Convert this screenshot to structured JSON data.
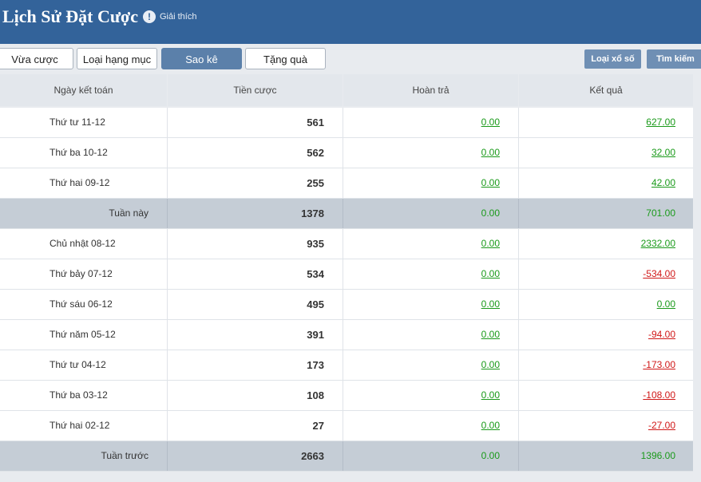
{
  "header": {
    "title": "Lịch Sử Đặt Cược",
    "help": "Giải thích"
  },
  "tabs": [
    "Vừa cược",
    "Loại hạng mục",
    "Sao kê",
    "Tặng quà"
  ],
  "active_tab": 2,
  "actions": [
    "Loại xổ số",
    "Tìm kiếm"
  ],
  "table": {
    "columns": [
      "Ngày kết toán",
      "Tiền cược",
      "Hoàn trả",
      "Kết quả"
    ],
    "rows": [
      {
        "summary": false,
        "cells": [
          "Thứ tư 11-12",
          "561",
          "0.00",
          "627.00"
        ]
      },
      {
        "summary": false,
        "cells": [
          "Thứ ba 10-12",
          "562",
          "0.00",
          "32.00"
        ]
      },
      {
        "summary": false,
        "cells": [
          "Thứ hai 09-12",
          "255",
          "0.00",
          "42.00"
        ]
      },
      {
        "summary": true,
        "cells": [
          "Tuần này",
          "1378",
          "0.00",
          "701.00"
        ]
      },
      {
        "summary": false,
        "cells": [
          "Chủ nhật 08-12",
          "935",
          "0.00",
          "2332.00"
        ]
      },
      {
        "summary": false,
        "cells": [
          "Thứ bảy 07-12",
          "534",
          "0.00",
          "-534.00"
        ]
      },
      {
        "summary": false,
        "cells": [
          "Thứ sáu 06-12",
          "495",
          "0.00",
          "0.00"
        ]
      },
      {
        "summary": false,
        "cells": [
          "Thứ năm 05-12",
          "391",
          "0.00",
          "-94.00"
        ]
      },
      {
        "summary": false,
        "cells": [
          "Thứ tư 04-12",
          "173",
          "0.00",
          "-173.00"
        ]
      },
      {
        "summary": false,
        "cells": [
          "Thứ ba 03-12",
          "108",
          "0.00",
          "-108.00"
        ]
      },
      {
        "summary": false,
        "cells": [
          "Thứ hai 02-12",
          "27",
          "0.00",
          "-27.00"
        ]
      },
      {
        "summary": true,
        "cells": [
          "Tuần trước",
          "2663",
          "0.00",
          "1396.00"
        ]
      }
    ]
  }
}
